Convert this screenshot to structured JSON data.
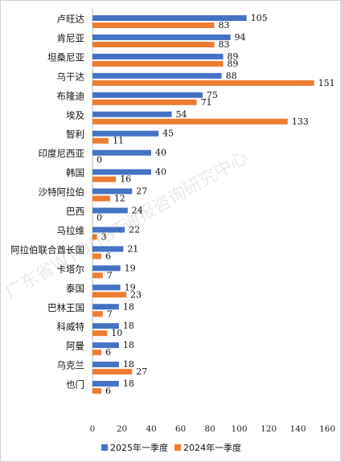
{
  "chart_data": {
    "type": "bar",
    "orientation": "horizontal",
    "categories": [
      "卢旺达",
      "肯尼亚",
      "坦桑尼亚",
      "乌干达",
      "布隆迪",
      "埃及",
      "智利",
      "印度尼西亚",
      "韩国",
      "沙特阿拉伯",
      "巴西",
      "马拉维",
      "阿拉伯联合酋长国",
      "卡塔尔",
      "泰国",
      "巴林王国",
      "科威特",
      "阿曼",
      "乌克兰",
      "也门"
    ],
    "series": [
      {
        "name": "2025年一季度",
        "color": "#4472C4",
        "values": [
          105,
          94,
          89,
          88,
          75,
          54,
          45,
          40,
          40,
          27,
          24,
          22,
          21,
          19,
          19,
          18,
          18,
          18,
          18,
          18
        ]
      },
      {
        "name": "2024年一季度",
        "color": "#ED7D31",
        "values": [
          83,
          83,
          89,
          151,
          71,
          133,
          11,
          0,
          16,
          12,
          0,
          3,
          6,
          7,
          23,
          7,
          10,
          6,
          27,
          6
        ]
      }
    ],
    "xlim": [
      0,
      160
    ],
    "xticks": [
      "0",
      "20",
      "40",
      "60",
      "80",
      "100",
      "120",
      "140",
      "160"
    ],
    "grid": false,
    "legend_position": "bottom",
    "watermark": "广东省WTO/TBT通报咨询研究中心"
  }
}
